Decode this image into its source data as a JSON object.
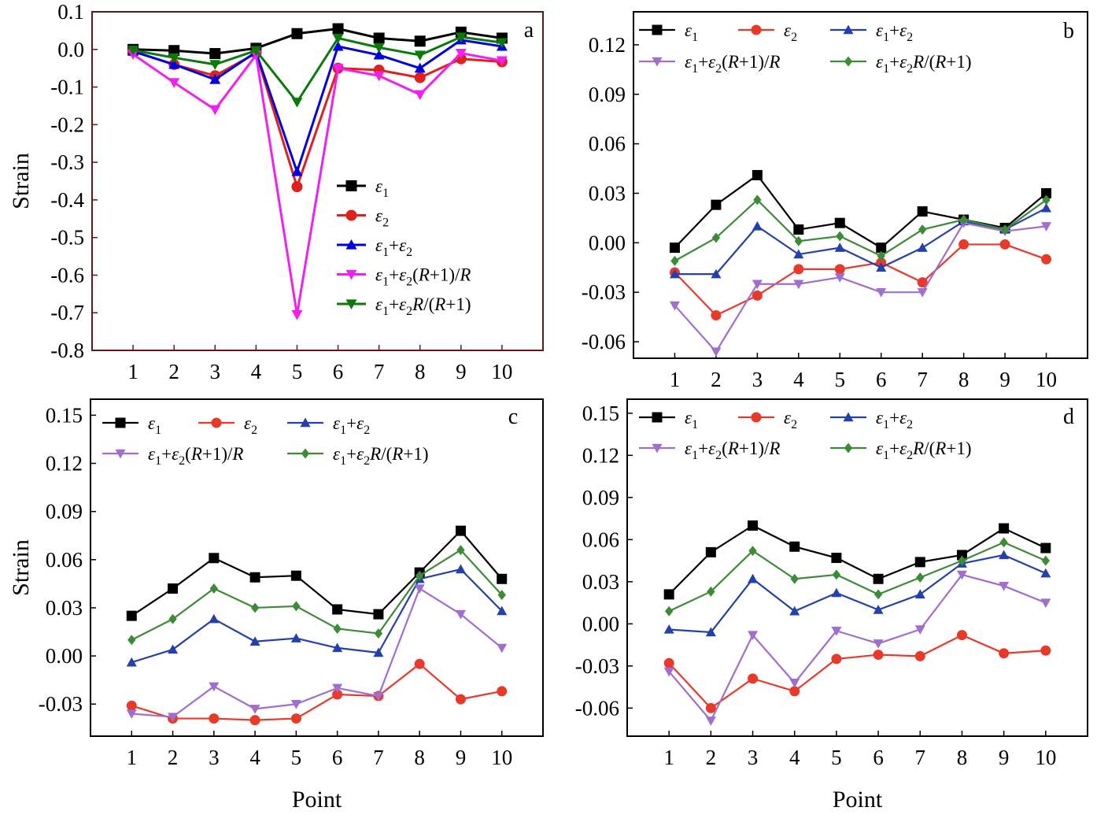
{
  "figure": {
    "x_axis_title": "Point",
    "y_axis_title": "Strain"
  },
  "colors": {
    "e1": "#000000",
    "e2": "#e8392b",
    "e1_plus_e2": "#2340ad",
    "e1_plus_e2_R1_over_R": "#a06ecf",
    "e1_plus_e2_R_over_R1": "#3d8b37",
    "a_e1": "#000000",
    "a_e2": "#e0201c",
    "a_e1_plus_e2": "#0000e0",
    "a_e1_plus_e2_R1_over_R": "#f020f0",
    "a_e1_plus_e2_R_over_R1": "#0a7a0a"
  },
  "chart_data": [
    {
      "panel": "a",
      "type": "line",
      "xlabel": "",
      "ylabel": "Strain",
      "x": [
        1,
        2,
        3,
        4,
        5,
        6,
        7,
        8,
        9,
        10
      ],
      "xlim": [
        0.0,
        11.0
      ],
      "ylim": [
        -0.8,
        0.1
      ],
      "yticks": [
        "0.1",
        "0.0",
        "-0.1",
        "-0.2",
        "-0.3",
        "-0.4",
        "-0.5",
        "-0.6",
        "-0.7",
        "-0.8"
      ],
      "legend_position": "center-right",
      "series": [
        {
          "name": "ε1",
          "color_key": "a_e1",
          "marker": "square",
          "values": [
            0.0,
            -0.003,
            -0.011,
            0.003,
            0.042,
            0.055,
            0.03,
            0.022,
            0.046,
            0.03
          ]
        },
        {
          "name": "ε2",
          "color_key": "a_e2",
          "marker": "circle",
          "values": [
            -0.005,
            -0.04,
            -0.07,
            -0.01,
            -0.365,
            -0.05,
            -0.055,
            -0.075,
            -0.025,
            -0.033
          ]
        },
        {
          "name": "ε1+ε2",
          "color_key": "a_e1_plus_e2",
          "marker": "triangle-up",
          "values": [
            -0.005,
            -0.04,
            -0.08,
            -0.007,
            -0.325,
            0.008,
            -0.015,
            -0.05,
            0.025,
            0.008
          ]
        },
        {
          "name": "ε1+ε2(R+1)/R",
          "color_key": "a_e1_plus_e2_R1_over_R",
          "marker": "triangle-down",
          "values": [
            -0.013,
            -0.088,
            -0.16,
            -0.015,
            -0.705,
            -0.05,
            -0.07,
            -0.12,
            -0.01,
            -0.03
          ]
        },
        {
          "name": "ε1+ε2R/(R+1)",
          "color_key": "a_e1_plus_e2_R_over_R1",
          "marker": "triangle-down",
          "values": [
            -0.002,
            -0.022,
            -0.04,
            -0.003,
            -0.14,
            0.03,
            0.005,
            -0.015,
            0.033,
            0.018
          ]
        }
      ]
    },
    {
      "panel": "b",
      "type": "line",
      "xlabel": "",
      "ylabel": "",
      "x": [
        1,
        2,
        3,
        4,
        5,
        6,
        7,
        8,
        9,
        10
      ],
      "xlim": [
        0.0,
        11.0
      ],
      "ylim": [
        -0.07,
        0.14
      ],
      "yticks": [
        "0.12",
        "0.09",
        "0.06",
        "0.03",
        "0.00",
        "-0.03",
        "-0.06"
      ],
      "legend_position": "top",
      "series": [
        {
          "name": "ε1",
          "color_key": "e1",
          "marker": "square",
          "values": [
            -0.003,
            0.023,
            0.041,
            0.008,
            0.012,
            -0.003,
            0.019,
            0.014,
            0.009,
            0.03
          ]
        },
        {
          "name": "ε2",
          "color_key": "e2",
          "marker": "circle",
          "values": [
            -0.018,
            -0.044,
            -0.032,
            -0.016,
            -0.016,
            -0.012,
            -0.024,
            -0.001,
            -0.001,
            -0.01
          ]
        },
        {
          "name": "ε1+ε2",
          "color_key": "e1_plus_e2",
          "marker": "triangle-up",
          "values": [
            -0.019,
            -0.019,
            0.01,
            -0.007,
            -0.003,
            -0.015,
            -0.003,
            0.013,
            0.008,
            0.021
          ]
        },
        {
          "name": "ε1+ε2(R+1)/R",
          "color_key": "e1_plus_e2_R1_over_R",
          "marker": "triangle-down",
          "values": [
            -0.038,
            -0.066,
            -0.025,
            -0.025,
            -0.021,
            -0.03,
            -0.03,
            0.012,
            0.007,
            0.01
          ]
        },
        {
          "name": "ε1+ε2R/(R+1)",
          "color_key": "e1_plus_e2_R_over_R1",
          "marker": "diamond",
          "values": [
            -0.011,
            0.003,
            0.026,
            0.001,
            0.004,
            -0.008,
            0.008,
            0.014,
            0.008,
            0.026
          ]
        }
      ]
    },
    {
      "panel": "c",
      "type": "line",
      "xlabel": "Point",
      "ylabel": "Strain",
      "x": [
        1,
        2,
        3,
        4,
        5,
        6,
        7,
        8,
        9,
        10
      ],
      "xlim": [
        0.0,
        11.0
      ],
      "ylim": [
        -0.05,
        0.16
      ],
      "yticks": [
        "0.15",
        "0.12",
        "0.09",
        "0.06",
        "0.03",
        "0.00",
        "-0.03"
      ],
      "legend_position": "top",
      "series": [
        {
          "name": "ε1",
          "color_key": "e1",
          "marker": "square",
          "values": [
            0.025,
            0.042,
            0.061,
            0.049,
            0.05,
            0.029,
            0.026,
            0.052,
            0.078,
            0.048
          ]
        },
        {
          "name": "ε2",
          "color_key": "e2",
          "marker": "circle",
          "values": [
            -0.031,
            -0.039,
            -0.039,
            -0.04,
            -0.039,
            -0.024,
            -0.025,
            -0.005,
            -0.027,
            -0.022
          ]
        },
        {
          "name": "ε1+ε2",
          "color_key": "e1_plus_e2",
          "marker": "triangle-up",
          "values": [
            -0.004,
            0.004,
            0.023,
            0.009,
            0.011,
            0.005,
            0.002,
            0.048,
            0.054,
            0.028
          ]
        },
        {
          "name": "ε1+ε2(R+1)/R",
          "color_key": "e1_plus_e2_R1_over_R",
          "marker": "triangle-down",
          "values": [
            -0.036,
            -0.038,
            -0.019,
            -0.033,
            -0.03,
            -0.02,
            -0.025,
            0.042,
            0.026,
            0.005
          ]
        },
        {
          "name": "ε1+ε2R/(R+1)",
          "color_key": "e1_plus_e2_R_over_R1",
          "marker": "diamond",
          "values": [
            0.01,
            0.023,
            0.042,
            0.03,
            0.031,
            0.017,
            0.014,
            0.05,
            0.066,
            0.038
          ]
        }
      ]
    },
    {
      "panel": "d",
      "type": "line",
      "xlabel": "Point",
      "ylabel": "",
      "x": [
        1,
        2,
        3,
        4,
        5,
        6,
        7,
        8,
        9,
        10
      ],
      "xlim": [
        0.0,
        11.0
      ],
      "ylim": [
        -0.08,
        0.16
      ],
      "yticks": [
        "0.15",
        "0.12",
        "0.09",
        "0.06",
        "0.03",
        "0.00",
        "-0.03",
        "-0.06"
      ],
      "legend_position": "top",
      "series": [
        {
          "name": "ε1",
          "color_key": "e1",
          "marker": "square",
          "values": [
            0.021,
            0.051,
            0.07,
            0.055,
            0.047,
            0.032,
            0.044,
            0.049,
            0.068,
            0.054
          ]
        },
        {
          "name": "ε2",
          "color_key": "e2",
          "marker": "circle",
          "values": [
            -0.028,
            -0.06,
            -0.039,
            -0.048,
            -0.025,
            -0.022,
            -0.023,
            -0.008,
            -0.021,
            -0.019
          ]
        },
        {
          "name": "ε1+ε2",
          "color_key": "e1_plus_e2",
          "marker": "triangle-up",
          "values": [
            -0.004,
            -0.006,
            0.032,
            0.009,
            0.022,
            0.01,
            0.021,
            0.043,
            0.049,
            0.036
          ]
        },
        {
          "name": "ε1+ε2(R+1)/R",
          "color_key": "e1_plus_e2_R1_over_R",
          "marker": "triangle-down",
          "values": [
            -0.034,
            -0.069,
            -0.008,
            -0.042,
            -0.005,
            -0.014,
            -0.004,
            0.035,
            0.027,
            0.015
          ]
        },
        {
          "name": "ε1+ε2R/(R+1)",
          "color_key": "e1_plus_e2_R_over_R1",
          "marker": "diamond",
          "values": [
            0.009,
            0.023,
            0.052,
            0.032,
            0.035,
            0.021,
            0.033,
            0.045,
            0.058,
            0.045
          ]
        }
      ]
    }
  ]
}
